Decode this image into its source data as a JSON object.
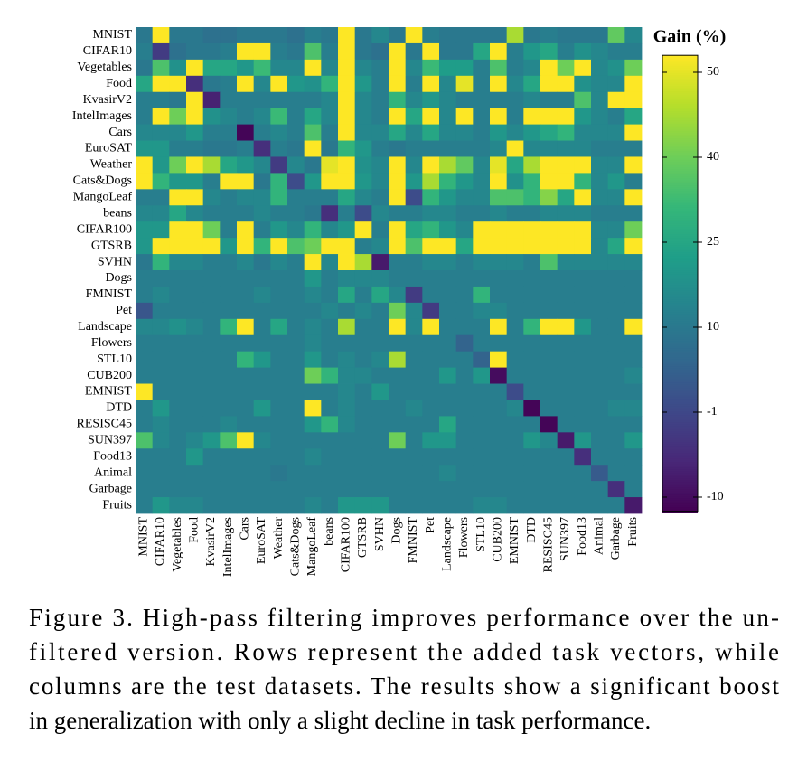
{
  "chart_data": {
    "type": "heatmap",
    "colorbar_label": "Gain (%)",
    "colormap": "viridis",
    "zlim": [
      -11.5,
      52
    ],
    "cbar_ticks": [
      -10,
      -1,
      10,
      25,
      40,
      50
    ],
    "x": [
      "MNIST",
      "CIFAR10",
      "Vegetables",
      "Food",
      "KvasirV2",
      "IntelImages",
      "Cars",
      "EuroSAT",
      "Weather",
      "Cats&Dogs",
      "MangoLeaf",
      "beans",
      "CIFAR100",
      "GTSRB",
      "SVHN",
      "Dogs",
      "FMNIST",
      "Pet",
      "Landscape",
      "Flowers",
      "STL10",
      "CUB200",
      "EMNIST",
      "DTD",
      "RESISC45",
      "SUN397",
      "Food13",
      "Animal",
      "Garbage",
      "Fruits"
    ],
    "y": [
      "MNIST",
      "CIFAR10",
      "Vegetables",
      "Food",
      "KvasirV2",
      "IntelImages",
      "Cars",
      "EuroSAT",
      "Weather",
      "Cats&Dogs",
      "MangoLeaf",
      "beans",
      "CIFAR100",
      "GTSRB",
      "SVHN",
      "Dogs",
      "FMNIST",
      "Pet",
      "Landscape",
      "Flowers",
      "STL10",
      "CUB200",
      "EMNIST",
      "DTD",
      "RESISC45",
      "SUN397",
      "Food13",
      "Animal",
      "Garbage",
      "Fruits"
    ],
    "z": [
      [
        10,
        52,
        10,
        10,
        8,
        8,
        10,
        10,
        10,
        8,
        12,
        10,
        52,
        10,
        15,
        10,
        52,
        12,
        10,
        10,
        10,
        10,
        45,
        10,
        12,
        10,
        10,
        10,
        38,
        15
      ],
      [
        12,
        -3,
        8,
        10,
        10,
        12,
        52,
        52,
        12,
        10,
        35,
        12,
        52,
        10,
        8,
        52,
        10,
        52,
        10,
        10,
        25,
        52,
        12,
        20,
        25,
        12,
        18,
        15,
        12,
        12
      ],
      [
        10,
        35,
        18,
        52,
        25,
        25,
        20,
        32,
        15,
        15,
        52,
        15,
        52,
        15,
        12,
        52,
        15,
        32,
        22,
        22,
        12,
        35,
        12,
        15,
        52,
        40,
        52,
        15,
        18,
        40
      ],
      [
        25,
        52,
        52,
        -5,
        10,
        12,
        52,
        15,
        52,
        20,
        18,
        30,
        52,
        20,
        12,
        52,
        12,
        52,
        15,
        50,
        12,
        52,
        15,
        25,
        52,
        52,
        18,
        15,
        15,
        52
      ],
      [
        12,
        12,
        10,
        52,
        -7,
        12,
        12,
        12,
        12,
        12,
        12,
        15,
        52,
        15,
        12,
        30,
        15,
        20,
        15,
        12,
        12,
        12,
        12,
        15,
        12,
        12,
        35,
        15,
        52,
        52
      ],
      [
        12,
        52,
        40,
        52,
        18,
        15,
        12,
        15,
        32,
        12,
        25,
        15,
        52,
        15,
        12,
        52,
        25,
        52,
        15,
        52,
        12,
        52,
        12,
        52,
        52,
        52,
        20,
        15,
        12,
        25
      ],
      [
        15,
        15,
        15,
        20,
        12,
        12,
        -11,
        12,
        15,
        12,
        35,
        12,
        52,
        15,
        15,
        25,
        15,
        25,
        15,
        15,
        12,
        20,
        15,
        20,
        25,
        30,
        15,
        15,
        15,
        52
      ],
      [
        20,
        20,
        12,
        12,
        10,
        10,
        12,
        -5,
        12,
        10,
        52,
        10,
        30,
        20,
        12,
        10,
        12,
        12,
        12,
        12,
        12,
        15,
        52,
        15,
        15,
        15,
        15,
        12,
        12,
        12
      ],
      [
        52,
        20,
        40,
        52,
        45,
        25,
        20,
        15,
        -3,
        15,
        10,
        50,
        52,
        18,
        15,
        52,
        15,
        52,
        45,
        38,
        15,
        50,
        25,
        45,
        52,
        52,
        52,
        15,
        15,
        52
      ],
      [
        52,
        30,
        20,
        20,
        12,
        52,
        52,
        10,
        30,
        0,
        20,
        52,
        52,
        20,
        15,
        52,
        20,
        45,
        30,
        20,
        15,
        52,
        18,
        30,
        52,
        52,
        30,
        15,
        20,
        12
      ],
      [
        12,
        12,
        52,
        52,
        15,
        12,
        15,
        15,
        30,
        12,
        12,
        12,
        25,
        15,
        12,
        52,
        0,
        30,
        20,
        15,
        15,
        35,
        35,
        30,
        42,
        25,
        52,
        15,
        15,
        52
      ],
      [
        15,
        15,
        25,
        15,
        12,
        12,
        12,
        15,
        12,
        12,
        10,
        -5,
        12,
        0,
        15,
        12,
        12,
        15,
        15,
        12,
        12,
        15,
        12,
        12,
        15,
        15,
        15,
        12,
        12,
        12
      ],
      [
        20,
        20,
        52,
        52,
        40,
        12,
        52,
        12,
        20,
        15,
        30,
        15,
        20,
        52,
        12,
        52,
        25,
        30,
        20,
        15,
        52,
        52,
        52,
        52,
        52,
        52,
        52,
        15,
        15,
        40
      ],
      [
        20,
        52,
        52,
        52,
        52,
        20,
        52,
        30,
        52,
        35,
        40,
        52,
        52,
        12,
        15,
        52,
        35,
        52,
        52,
        25,
        52,
        52,
        52,
        52,
        52,
        52,
        52,
        15,
        25,
        52
      ],
      [
        10,
        30,
        15,
        15,
        12,
        12,
        15,
        10,
        15,
        12,
        52,
        15,
        52,
        45,
        -8,
        12,
        12,
        15,
        15,
        12,
        15,
        15,
        15,
        12,
        35,
        15,
        15,
        15,
        15,
        15
      ],
      [
        12,
        12,
        12,
        12,
        12,
        12,
        12,
        12,
        12,
        12,
        20,
        12,
        15,
        15,
        15,
        12,
        12,
        12,
        12,
        12,
        12,
        12,
        12,
        12,
        12,
        12,
        12,
        12,
        12,
        12
      ],
      [
        12,
        15,
        12,
        12,
        12,
        12,
        12,
        15,
        12,
        12,
        15,
        12,
        25,
        12,
        25,
        15,
        -3,
        12,
        12,
        12,
        30,
        12,
        12,
        12,
        12,
        12,
        12,
        12,
        12,
        12
      ],
      [
        2,
        12,
        12,
        12,
        12,
        12,
        12,
        12,
        12,
        12,
        12,
        15,
        12,
        15,
        12,
        40,
        15,
        -3,
        12,
        12,
        15,
        15,
        12,
        12,
        12,
        12,
        12,
        12,
        12,
        12
      ],
      [
        15,
        15,
        18,
        15,
        12,
        30,
        52,
        12,
        25,
        12,
        15,
        12,
        45,
        12,
        12,
        52,
        15,
        52,
        12,
        12,
        12,
        52,
        12,
        30,
        52,
        52,
        20,
        12,
        12,
        52
      ],
      [
        12,
        12,
        12,
        12,
        12,
        12,
        12,
        12,
        12,
        12,
        15,
        12,
        12,
        12,
        12,
        12,
        12,
        12,
        12,
        5,
        12,
        12,
        12,
        12,
        12,
        12,
        12,
        12,
        12,
        12
      ],
      [
        12,
        12,
        12,
        12,
        12,
        12,
        30,
        20,
        12,
        12,
        20,
        12,
        15,
        12,
        15,
        45,
        12,
        12,
        12,
        12,
        5,
        52,
        12,
        12,
        12,
        12,
        12,
        12,
        12,
        12
      ],
      [
        12,
        12,
        12,
        12,
        12,
        12,
        12,
        12,
        12,
        12,
        40,
        30,
        15,
        15,
        12,
        12,
        12,
        12,
        20,
        12,
        20,
        -10,
        12,
        12,
        12,
        12,
        12,
        12,
        12,
        15
      ],
      [
        52,
        12,
        12,
        12,
        12,
        12,
        12,
        12,
        12,
        12,
        12,
        12,
        15,
        12,
        20,
        12,
        12,
        12,
        12,
        12,
        12,
        12,
        0,
        12,
        12,
        12,
        12,
        12,
        12,
        12
      ],
      [
        12,
        20,
        12,
        12,
        12,
        12,
        12,
        20,
        12,
        12,
        52,
        12,
        15,
        12,
        12,
        12,
        15,
        12,
        12,
        12,
        12,
        12,
        15,
        -11,
        12,
        12,
        12,
        12,
        15,
        15
      ],
      [
        12,
        15,
        12,
        12,
        12,
        15,
        12,
        12,
        12,
        12,
        20,
        30,
        15,
        12,
        12,
        12,
        12,
        12,
        25,
        12,
        12,
        12,
        12,
        12,
        -11,
        12,
        12,
        12,
        12,
        12
      ],
      [
        35,
        15,
        12,
        15,
        20,
        35,
        52,
        15,
        12,
        12,
        12,
        12,
        12,
        12,
        12,
        40,
        12,
        20,
        20,
        12,
        12,
        12,
        12,
        20,
        15,
        -8,
        20,
        12,
        12,
        20
      ],
      [
        12,
        12,
        12,
        20,
        12,
        12,
        12,
        12,
        12,
        12,
        15,
        12,
        12,
        12,
        12,
        12,
        12,
        12,
        12,
        12,
        12,
        12,
        12,
        12,
        12,
        12,
        -5,
        12,
        12,
        12
      ],
      [
        12,
        12,
        12,
        12,
        12,
        12,
        12,
        12,
        10,
        12,
        12,
        12,
        12,
        12,
        12,
        12,
        12,
        12,
        15,
        12,
        12,
        12,
        12,
        12,
        12,
        12,
        12,
        3,
        12,
        12
      ],
      [
        12,
        12,
        12,
        12,
        12,
        12,
        12,
        12,
        12,
        12,
        12,
        12,
        12,
        12,
        12,
        12,
        12,
        12,
        12,
        12,
        12,
        12,
        12,
        12,
        12,
        12,
        12,
        12,
        -5,
        12
      ],
      [
        12,
        20,
        15,
        15,
        12,
        12,
        12,
        12,
        12,
        12,
        15,
        12,
        20,
        20,
        20,
        12,
        12,
        12,
        12,
        12,
        15,
        15,
        12,
        12,
        12,
        12,
        12,
        12,
        12,
        -8
      ]
    ]
  },
  "caption": [
    "Figure 3. High-pass filtering improves performance over the un-",
    "filtered version.  Rows represent the added task vectors, while",
    "columns are the test datasets. The results show a significant boost",
    "in generalization with only a slight decline in task performance."
  ]
}
